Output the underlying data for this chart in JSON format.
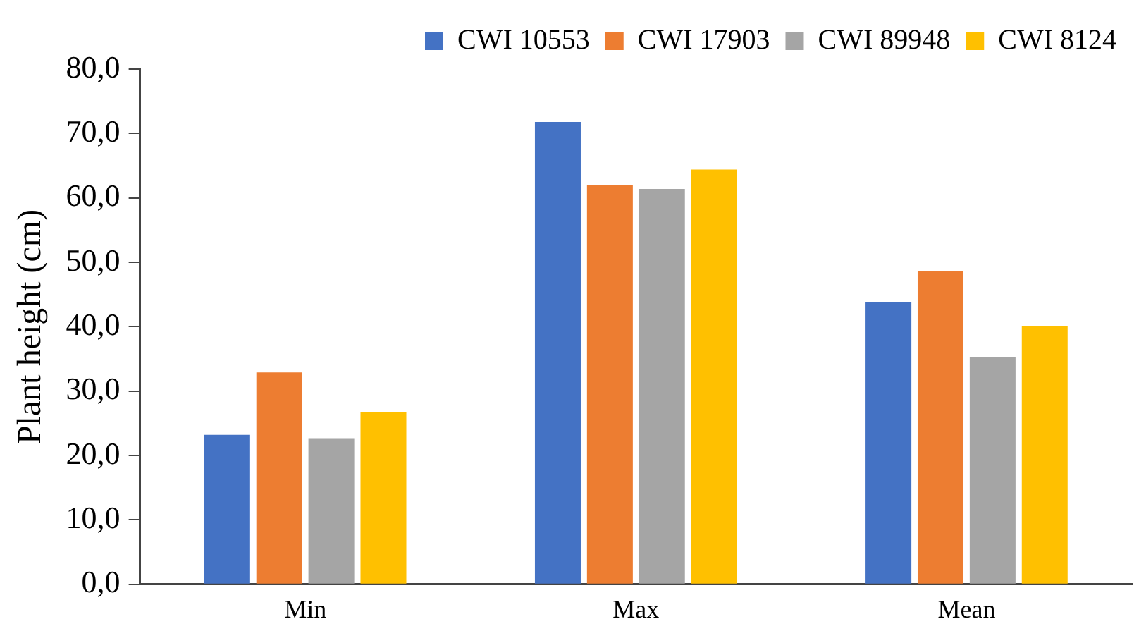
{
  "chart_data": {
    "type": "bar",
    "ylabel": "Plant height (cm)",
    "categories": [
      "Min",
      "Max",
      "Mean"
    ],
    "series": [
      {
        "name": "CWI 10553",
        "color": "#4472c4",
        "values": [
          23.2,
          71.8,
          43.8
        ]
      },
      {
        "name": "CWI 17903",
        "color": "#ed7d31",
        "values": [
          32.9,
          62.0,
          48.6
        ]
      },
      {
        "name": "CWI 89948",
        "color": "#a5a5a5",
        "values": [
          22.7,
          61.4,
          35.3
        ]
      },
      {
        "name": "CWI 8124",
        "color": "#ffc000",
        "values": [
          26.7,
          64.4,
          40.1
        ]
      }
    ],
    "ylim": [
      0,
      80
    ],
    "yticks": [
      {
        "value": 0,
        "label": "0,0"
      },
      {
        "value": 10,
        "label": "10,0"
      },
      {
        "value": 20,
        "label": "20,0"
      },
      {
        "value": 30,
        "label": "30,0"
      },
      {
        "value": 40,
        "label": "40,0"
      },
      {
        "value": 50,
        "label": "50,0"
      },
      {
        "value": 60,
        "label": "60,0"
      },
      {
        "value": 70,
        "label": "70,0"
      },
      {
        "value": 80,
        "label": "80,0"
      }
    ],
    "grid": false,
    "legend": "top right"
  }
}
